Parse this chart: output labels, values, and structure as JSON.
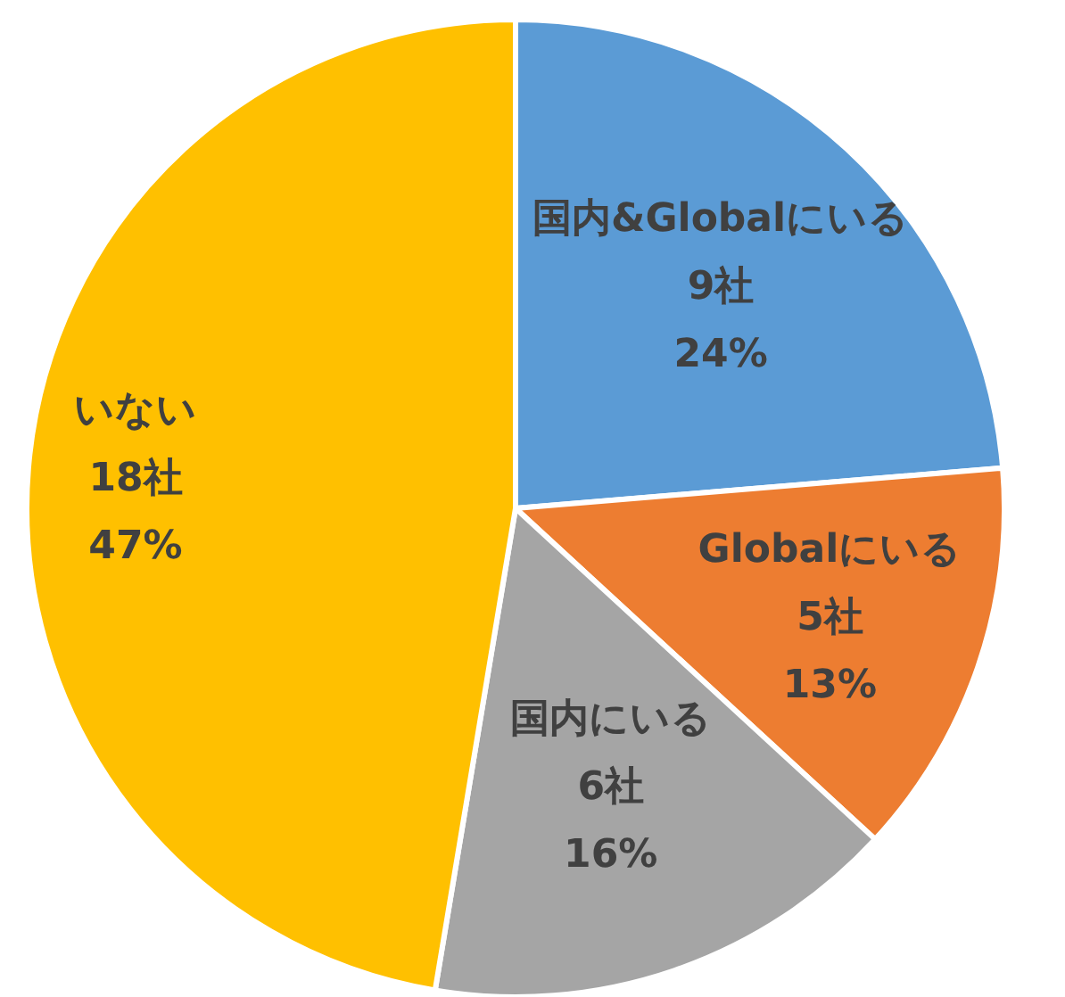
{
  "chart_data": {
    "type": "pie",
    "categories": [
      "国内&Globalにいる",
      "Globalにいる",
      "国内にいる",
      "いない"
    ],
    "values": [
      9,
      5,
      6,
      18
    ],
    "value_labels": [
      "9社\n24%",
      "5社\n13%",
      "6社\n16%",
      "18社\n47%"
    ],
    "colors": [
      "#5b9bd5",
      "#ed7d31",
      "#a5a5a5",
      "#ffc000"
    ]
  }
}
